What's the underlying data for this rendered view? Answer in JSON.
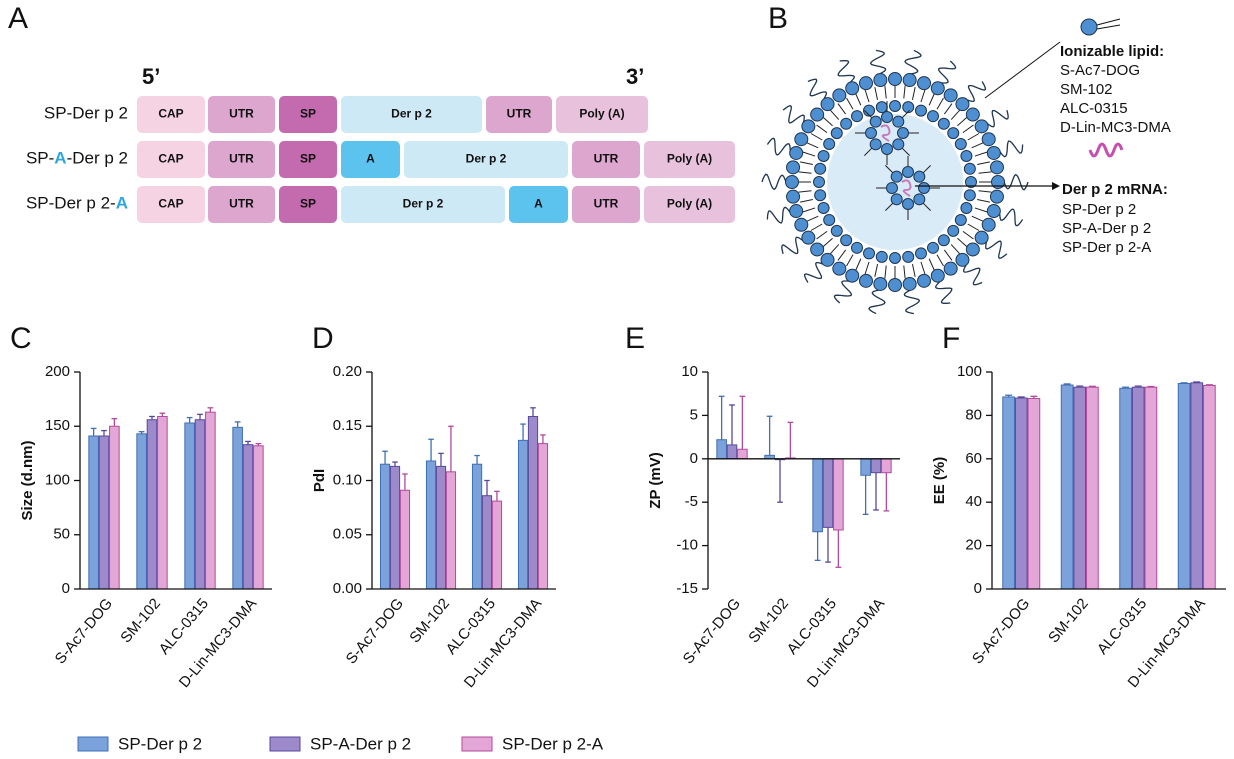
{
  "panel_a": {
    "letter": "A",
    "five_prime": "5’",
    "three_prime": "3’",
    "rows": [
      {
        "label": [
          {
            "text": "SP-Der p 2"
          }
        ],
        "segments": [
          {
            "text": "CAP",
            "color": "#f6d3e3"
          },
          {
            "text": "UTR",
            "color": "#dca6cf"
          },
          {
            "text": "SP",
            "color": "#c46aae"
          },
          {
            "text": "Der p 2",
            "color": "#cde9f6"
          },
          {
            "text": "UTR",
            "color": "#dca6cf"
          },
          {
            "text": "Poly (A)",
            "color": "#e8c2dd"
          }
        ]
      },
      {
        "label": [
          {
            "text": "SP-"
          },
          {
            "text": "A",
            "color": "#2aa6e0"
          },
          {
            "text": "-Der p 2"
          }
        ],
        "segments": [
          {
            "text": "CAP",
            "color": "#f6d3e3"
          },
          {
            "text": "UTR",
            "color": "#dca6cf"
          },
          {
            "text": "SP",
            "color": "#c46aae"
          },
          {
            "text": "A",
            "color": "#5bc3ee"
          },
          {
            "text": "Der p 2",
            "color": "#cde9f6"
          },
          {
            "text": "UTR",
            "color": "#dca6cf"
          },
          {
            "text": "Poly (A)",
            "color": "#e8c2dd"
          }
        ]
      },
      {
        "label": [
          {
            "text": "SP-Der p 2-"
          },
          {
            "text": "A",
            "color": "#2aa6e0"
          }
        ],
        "segments": [
          {
            "text": "CAP",
            "color": "#f6d3e3"
          },
          {
            "text": "UTR",
            "color": "#dca6cf"
          },
          {
            "text": "SP",
            "color": "#c46aae"
          },
          {
            "text": "Der p 2",
            "color": "#cde9f6"
          },
          {
            "text": "A",
            "color": "#5bc3ee"
          },
          {
            "text": "UTR",
            "color": "#dca6cf"
          },
          {
            "text": "Poly (A)",
            "color": "#e8c2dd"
          }
        ]
      }
    ]
  },
  "panel_b": {
    "letter": "B",
    "lipid_title": "Ionizable lipid:",
    "lipids": [
      "S-Ac7-DOG",
      "SM-102",
      "ALC-0315",
      "D-Lin-MC3-DMA"
    ],
    "mrna_title": "Der p 2 mRNA:",
    "mrnas": [
      "SP-Der p 2",
      "SP-A-Der p 2",
      "SP-Der p 2-A"
    ]
  },
  "legend": [
    {
      "name": "SP-Der p 2",
      "color": "#7ba2db",
      "edge": "#3f6fb5"
    },
    {
      "name": "SP-A-Der p 2",
      "color": "#9c8acb",
      "edge": "#5a479c"
    },
    {
      "name": "SP-Der p 2-A",
      "color": "#e3a6d6",
      "edge": "#b14b9d"
    }
  ],
  "chart_data": [
    {
      "type": "bar",
      "panel": "C",
      "ylabel": "Size (d.nm)",
      "categories": [
        "S-Ac7-DOG",
        "SM-102",
        "ALC-0315",
        "D-Lin-MC3-DMA"
      ],
      "ylim": [
        0,
        200
      ],
      "yticks": [
        0,
        50,
        100,
        150,
        200
      ],
      "series": [
        {
          "values": [
            141,
            143,
            153,
            149
          ],
          "errors": [
            7,
            2,
            5,
            5
          ]
        },
        {
          "values": [
            141,
            156,
            156,
            133
          ],
          "errors": [
            5,
            3,
            5,
            3
          ]
        },
        {
          "values": [
            150,
            159,
            163,
            132
          ],
          "errors": [
            7,
            3,
            4,
            2
          ]
        }
      ]
    },
    {
      "type": "bar",
      "panel": "D",
      "ylabel": "PdI",
      "categories": [
        "S-Ac7-DOG",
        "SM-102",
        "ALC-0315",
        "D-Lin-MC3-DMA"
      ],
      "ylim": [
        0,
        0.2
      ],
      "yticks": [
        {
          "value": 0,
          "label": "0.00"
        },
        0.05,
        {
          "value": 0.1,
          "label": "0.10"
        },
        0.15,
        {
          "value": 0.2,
          "label": "0.20"
        }
      ],
      "series": [
        {
          "values": [
            0.115,
            0.118,
            0.115,
            0.137
          ],
          "errors": [
            0.012,
            0.02,
            0.008,
            0.015
          ]
        },
        {
          "values": [
            0.113,
            0.113,
            0.086,
            0.159
          ],
          "errors": [
            0.004,
            0.012,
            0.014,
            0.008
          ]
        },
        {
          "values": [
            0.091,
            0.108,
            0.081,
            0.134
          ],
          "errors": [
            0.015,
            0.042,
            0.009,
            0.008
          ]
        }
      ]
    },
    {
      "type": "bar",
      "panel": "E",
      "ylabel": "ZP (mV)",
      "categories": [
        "S-Ac7-DOG",
        "SM-102",
        "ALC-0315",
        "D-Lin-MC3-DMA"
      ],
      "ylim": [
        -15,
        10
      ],
      "yticks": [
        -15,
        -10,
        -5,
        0,
        5,
        10
      ],
      "series": [
        {
          "values": [
            2.2,
            0.4,
            -8.4,
            -1.9
          ],
          "errors": [
            5,
            4.5,
            3.3,
            4.5
          ]
        },
        {
          "values": [
            1.6,
            -0.1,
            -7.9,
            -1.6
          ],
          "errors": [
            4.6,
            4.9,
            4,
            4.3
          ]
        },
        {
          "values": [
            1.1,
            0.1,
            -8.2,
            -1.6
          ],
          "errors": [
            6.1,
            4.1,
            4.3,
            4.4
          ]
        }
      ]
    },
    {
      "type": "bar",
      "panel": "F",
      "ylabel": "EE (%)",
      "categories": [
        "S-Ac7-DOG",
        "SM-102",
        "ALC-0315",
        "D-Lin-MC3-DMA"
      ],
      "ylim": [
        0,
        100
      ],
      "yticks": [
        0,
        20,
        40,
        60,
        80,
        100
      ],
      "series": [
        {
          "values": [
            88.5,
            94,
            92.5,
            94.7
          ],
          "errors": [
            0.8,
            0.5,
            0.5,
            0.3
          ]
        },
        {
          "values": [
            88,
            93,
            93,
            95
          ],
          "errors": [
            0.5,
            0.5,
            0.5,
            0.4
          ]
        },
        {
          "values": [
            87.8,
            93,
            93,
            93.8
          ],
          "errors": [
            1,
            0.4,
            0.3,
            0.3
          ]
        }
      ]
    }
  ]
}
